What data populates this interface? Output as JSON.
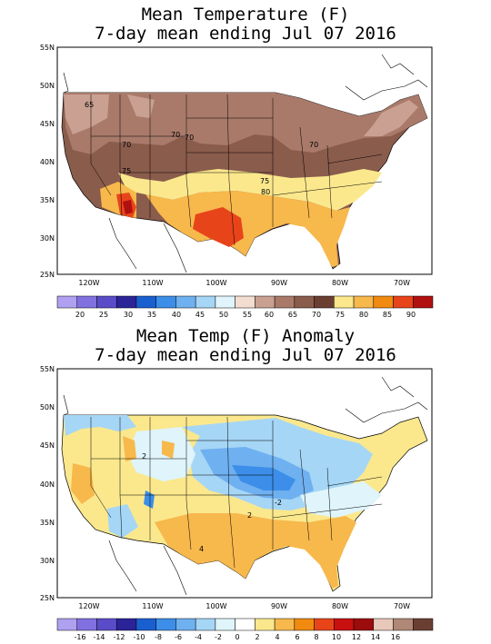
{
  "panel1": {
    "title_line1": "Mean Temperature (F)",
    "title_line2": "7-day mean ending Jul 07 2016",
    "lat_labels": [
      "55N",
      "50N",
      "45N",
      "40N",
      "35N",
      "30N",
      "25N"
    ],
    "lon_labels": [
      "120W",
      "110W",
      "100W",
      "90W",
      "80W",
      "70W"
    ],
    "contour_labels": [
      "65",
      "70",
      "70",
      "70",
      "70",
      "75",
      "75",
      "80"
    ],
    "legend_labels": [
      "20",
      "25",
      "30",
      "35",
      "40",
      "45",
      "50",
      "55",
      "60",
      "65",
      "70",
      "75",
      "80",
      "85",
      "90"
    ],
    "legend_colors": [
      "#b0a0f0",
      "#8070e0",
      "#5a4cc8",
      "#2b2398",
      "#1a5fd0",
      "#3c8ee8",
      "#6fb0f0",
      "#a6d6f6",
      "#dff4fb",
      "#f3dcd0",
      "#c9a091",
      "#a97a6a",
      "#8a5c4c",
      "#6a3f32",
      "#fbe88d",
      "#f7b84c",
      "#f08a10",
      "#e8441a",
      "#b01010"
    ]
  },
  "panel2": {
    "title_line1": "Mean Temp (F) Anomaly",
    "title_line2": "7-day mean ending Jul 07 2016",
    "lat_labels": [
      "55N",
      "50N",
      "45N",
      "40N",
      "35N",
      "30N",
      "25N"
    ],
    "lon_labels": [
      "120W",
      "110W",
      "100W",
      "90W",
      "80W",
      "70W"
    ],
    "contour_labels": [
      "2",
      "4",
      "-2",
      "2"
    ],
    "legend_labels": [
      "-16",
      "-14",
      "-12",
      "-10",
      "-8",
      "-6",
      "-4",
      "-2",
      "0",
      "2",
      "4",
      "6",
      "8",
      "10",
      "12",
      "14",
      "16"
    ],
    "legend_colors": [
      "#b0a0f0",
      "#8070e0",
      "#5a4cc8",
      "#2b2398",
      "#1a5fd0",
      "#3c8ee8",
      "#6fb0f0",
      "#a6d6f6",
      "#dff4fb",
      "#ffffff",
      "#fbe88d",
      "#f7b84c",
      "#f08a10",
      "#e8441a",
      "#c81010",
      "#9c0c0c",
      "#e8c8b8",
      "#b08878",
      "#6a3f32"
    ]
  }
}
